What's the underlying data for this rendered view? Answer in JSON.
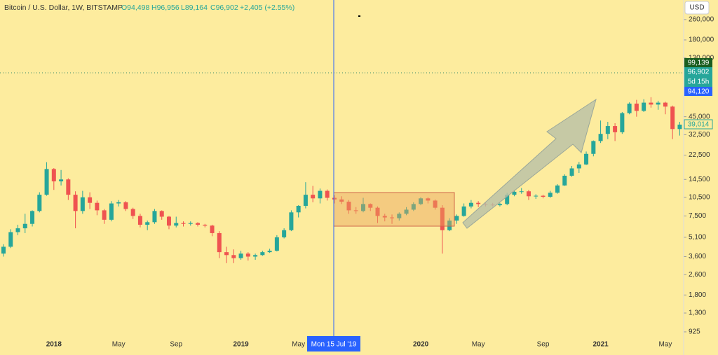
{
  "header": {
    "title": "Bitcoin / U.S. Dollar, 1W, BITSTAMP",
    "ohlc": [
      "O94,498",
      "H96,956",
      "L89,164",
      "C96,902",
      "+2,405 (+2.55%)"
    ],
    "currency": "USD",
    "price_labels": [
      "99,139",
      "96,902",
      "5d 15h",
      "94,120",
      "39,014"
    ],
    "crosshair_label": "Mon 15 Jul '19"
  },
  "chart_data": {
    "type": "candlestick",
    "log_scale": true,
    "up_color": "#26a69a",
    "down_color": "#ef5350",
    "categories": [
      null,
      null,
      null,
      null,
      null,
      null,
      null,
      "2018",
      null,
      null,
      null,
      null,
      null,
      null,
      null,
      null,
      "May",
      null,
      null,
      null,
      null,
      null,
      null,
      null,
      "Sep",
      null,
      null,
      null,
      null,
      null,
      null,
      null,
      null,
      "2019",
      null,
      null,
      null,
      null,
      null,
      null,
      null,
      "May",
      null,
      null,
      null,
      null,
      null,
      null,
      null,
      null,
      null,
      null,
      null,
      null,
      null,
      null,
      null,
      null,
      "2020",
      null,
      null,
      null,
      null,
      null,
      null,
      null,
      "May",
      null,
      null,
      null,
      null,
      null,
      null,
      null,
      null,
      "Sep",
      null,
      null,
      null,
      null,
      null,
      null,
      null,
      "2021",
      null,
      null,
      null,
      null,
      null,
      null,
      null,
      null,
      "May",
      null,
      null
    ],
    "open": [
      3800,
      4300,
      5600,
      6000,
      6500,
      8200,
      11000,
      17500,
      14000,
      14500,
      11000,
      8200,
      10500,
      9500,
      8300,
      7000,
      9400,
      9600,
      8500,
      7500,
      6400,
      6700,
      8200,
      7400,
      6300,
      6600,
      6500,
      6600,
      6400,
      6300,
      5500,
      3900,
      3700,
      3500,
      3800,
      3600,
      3700,
      3900,
      4000,
      5100,
      5800,
      8000,
      9000,
      11000,
      10300,
      11800,
      10400,
      10100,
      9700,
      8300,
      8200,
      9300,
      8700,
      7500,
      7300,
      7200,
      7800,
      8400,
      9300,
      10300,
      9900,
      8700,
      5800,
      6900,
      7500,
      8900,
      9500,
      9300,
      9200,
      9100,
      9300,
      11000,
      11600,
      11700,
      10700,
      10800,
      10600,
      11400,
      13000,
      15500,
      17700,
      19000,
      23000,
      29000,
      33000,
      38000,
      34000,
      48000,
      57000,
      50000,
      58000,
      56000,
      58000,
      54000,
      36000
    ],
    "high": [
      4500,
      5900,
      6400,
      7800,
      8300,
      11500,
      19800,
      17800,
      17200,
      14800,
      11700,
      11800,
      11500,
      9900,
      8500,
      9800,
      10000,
      9800,
      8700,
      7800,
      6900,
      8500,
      8300,
      7500,
      7400,
      6800,
      6800,
      6700,
      6500,
      6400,
      5700,
      4300,
      4100,
      4000,
      3900,
      3800,
      4000,
      4150,
      5300,
      6000,
      8300,
      9100,
      13800,
      12900,
      12300,
      12100,
      10900,
      10700,
      10000,
      8800,
      10400,
      9400,
      8900,
      7800,
      7700,
      8000,
      8800,
      9600,
      10500,
      10500,
      10100,
      9100,
      7200,
      7700,
      9400,
      10000,
      9800,
      9600,
      9500,
      9500,
      11400,
      12000,
      12400,
      12000,
      11100,
      11000,
      11800,
      13300,
      15900,
      18500,
      19900,
      24000,
      29300,
      42000,
      41000,
      40000,
      49000,
      58300,
      61000,
      61700,
      64000,
      60000,
      59000,
      55000,
      41000
    ],
    "low": [
      3600,
      4200,
      5300,
      5500,
      6200,
      8000,
      10800,
      12000,
      13000,
      10000,
      6000,
      7800,
      8500,
      7600,
      6500,
      6800,
      8900,
      8200,
      7100,
      6100,
      5800,
      6500,
      7000,
      5900,
      6100,
      6200,
      6300,
      6200,
      6100,
      5200,
      3500,
      3200,
      3200,
      3400,
      3350,
      3400,
      3650,
      3850,
      3950,
      5000,
      5700,
      7300,
      8600,
      9600,
      9400,
      9900,
      9400,
      9300,
      7800,
      7800,
      8000,
      8200,
      6600,
      6800,
      6500,
      6900,
      7600,
      8200,
      9100,
      9400,
      8400,
      3800,
      5700,
      6500,
      7400,
      8600,
      8800,
      8900,
      8900,
      8900,
      9100,
      10700,
      11200,
      10000,
      10200,
      10300,
      10400,
      11200,
      12900,
      15200,
      16300,
      18800,
      22000,
      28000,
      30000,
      29000,
      33000,
      47000,
      45000,
      49000,
      53000,
      51000,
      47000,
      30000,
      32000
    ],
    "close": [
      4300,
      5600,
      6000,
      6500,
      8200,
      11000,
      17500,
      14000,
      14500,
      11000,
      8200,
      10500,
      9500,
      8300,
      7000,
      9400,
      9600,
      8500,
      7500,
      6400,
      6700,
      8200,
      7400,
      6300,
      6600,
      6500,
      6600,
      6400,
      6300,
      5500,
      3900,
      3700,
      3500,
      3800,
      3600,
      3700,
      3900,
      4000,
      5100,
      5800,
      8000,
      9000,
      11000,
      10300,
      11800,
      10400,
      10100,
      9700,
      8300,
      8200,
      9300,
      8700,
      7500,
      7300,
      7200,
      7800,
      8400,
      9300,
      10300,
      9900,
      8700,
      5800,
      6900,
      7500,
      8900,
      9500,
      9300,
      9200,
      9100,
      9300,
      11000,
      11600,
      11700,
      10700,
      10800,
      10600,
      11400,
      13000,
      15500,
      17700,
      19000,
      23000,
      29000,
      33000,
      38000,
      34000,
      48000,
      57000,
      50000,
      58000,
      56000,
      58000,
      54000,
      36000,
      39000
    ],
    "ylim": [
      857,
      370000
    ],
    "yticks": [
      925,
      {
        "value": 1300,
        "label": "1,300"
      },
      {
        "value": 1800,
        "label": "1,800"
      },
      {
        "value": 2600,
        "label": "2,600"
      },
      {
        "value": 3600,
        "label": "3,600"
      },
      {
        "value": 5100,
        "label": "5,100"
      },
      {
        "value": 7500,
        "label": "7,500"
      },
      {
        "value": 10500,
        "label": "10,500"
      },
      {
        "value": 14500,
        "label": "14,500"
      },
      {
        "value": 22500,
        "label": "22,500"
      },
      {
        "value": 32500,
        "label": "32,500"
      },
      {
        "value": 45000,
        "label": "45,000"
      },
      {
        "value": 130000,
        "label": "130,000"
      },
      {
        "value": 180000,
        "label": "180,000"
      },
      {
        "value": 260000,
        "label": "260,000"
      }
    ]
  }
}
